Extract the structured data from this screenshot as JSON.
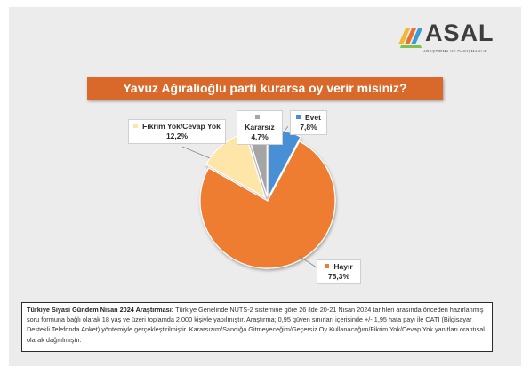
{
  "brand": {
    "name": "ASAL",
    "tagline": "ARAŞTIRMA VE DANIŞMANLIK"
  },
  "chart_data": {
    "type": "pie",
    "title": "Yavuz Ağıralioğlu parti kurarsa oy verir misiniz?",
    "slices": [
      {
        "label": "Evet",
        "value": 7.8,
        "display": "7,8%",
        "color": "#4a8fd6"
      },
      {
        "label": "Hayır",
        "value": 75.3,
        "display": "75,3%",
        "color": "#ee7d31"
      },
      {
        "label": "Fikrim Yok/Cevap Yok",
        "value": 12.2,
        "display": "12,2%",
        "color": "#fde6a8"
      },
      {
        "label": "Kararsız",
        "value": 4.7,
        "display": "4,7%",
        "color": "#a5a5a5"
      }
    ]
  },
  "note": {
    "heading": "Türkiye Siyasi Gündem Nisan 2024 Araştırması:",
    "body": "Türkiye Genelinde NUTS-2 sistemine göre 26 ilde 20-21 Nisan 2024 tarihleri arasında önceden hazırlanmış soru formuna bağlı olarak 18 yaş ve üzeri toplamda 2.000 kişiyle yapılmıştır. Araştırma; 0,95 güven sınırları içerisinde +/- 1,95 hata payı ile CATI (Bilgisayar Destekli Telefonda Anket) yöntemiyle gerçekleştirilmiştir. Kararsızım/Sandığa Gitmeyeceğim/Geçersiz Oy Kullanacağım/Fikrim Yok/Cevap Yok yanıtları orantısal olarak dağıtılmıştır."
  }
}
